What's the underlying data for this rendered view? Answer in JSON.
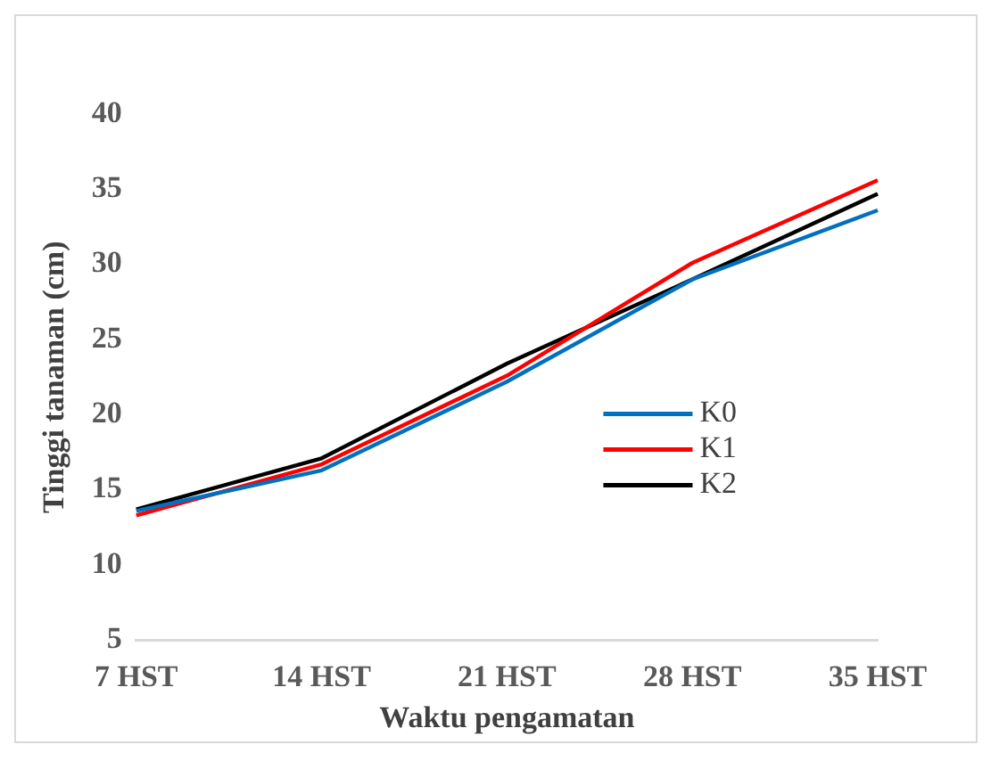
{
  "chart_data": {
    "type": "line",
    "xlabel": "Waktu pengamatan",
    "ylabel": "Tinggi tanaman (cm)",
    "categories": [
      "7 HST",
      "14 HST",
      "21 HST",
      "28 HST",
      "35 HST"
    ],
    "series": [
      {
        "name": "K0",
        "color": "#0070c0",
        "values": [
          13.6,
          16.3,
          22.2,
          29.0,
          33.6
        ]
      },
      {
        "name": "K1",
        "color": "#ff0000",
        "values": [
          13.3,
          16.7,
          22.6,
          30.1,
          35.6
        ]
      },
      {
        "name": "K2",
        "color": "#000000",
        "values": [
          13.7,
          17.1,
          23.4,
          29.0,
          34.7
        ]
      }
    ],
    "ylim": [
      5,
      40
    ],
    "yticks": [
      5,
      10,
      15,
      20,
      25,
      30,
      35,
      40
    ],
    "grid": false,
    "legend": "right",
    "marker": "none",
    "line_style": "solid"
  }
}
